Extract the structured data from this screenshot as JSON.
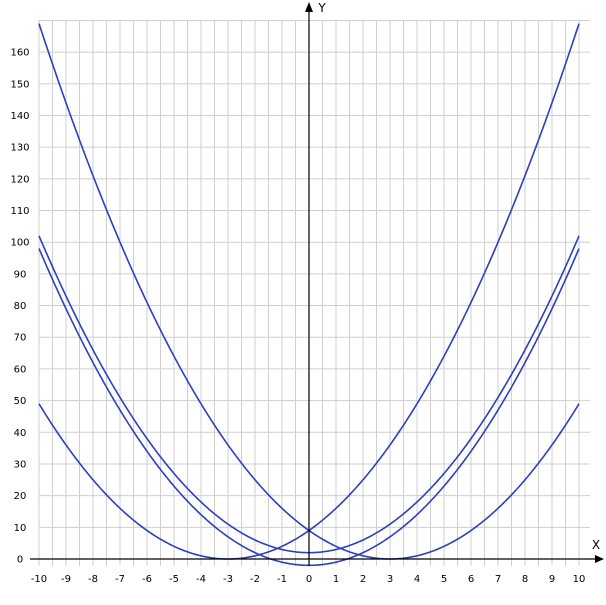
{
  "chart_data": {
    "type": "line",
    "title": "",
    "xlabel": "X",
    "ylabel": "Y",
    "xlim": [
      -10,
      10
    ],
    "ylim": [
      -2,
      170
    ],
    "grid": true,
    "x_ticks": [
      -10,
      -9,
      -8,
      -7,
      -6,
      -5,
      -4,
      -3,
      -2,
      -1,
      0,
      1,
      2,
      3,
      4,
      5,
      6,
      7,
      8,
      9,
      10
    ],
    "y_ticks": [
      0,
      10,
      20,
      30,
      40,
      50,
      60,
      70,
      80,
      90,
      100,
      110,
      120,
      130,
      140,
      150,
      160
    ],
    "line_color": "#2b3fc0",
    "x": [
      -10,
      -9,
      -8,
      -7,
      -6,
      -5,
      -4,
      -3,
      -2,
      -1,
      0,
      1,
      2,
      3,
      4,
      5,
      6,
      7,
      8,
      9,
      10
    ],
    "series": [
      {
        "values": [
          169,
          144,
          121,
          100,
          81,
          64,
          49,
          36,
          25,
          16,
          9,
          4,
          1,
          0,
          1,
          4,
          9,
          16,
          25,
          36,
          49
        ]
      },
      {
        "values": [
          49,
          36,
          25,
          16,
          9,
          4,
          1,
          0,
          1,
          4,
          9,
          16,
          25,
          36,
          49,
          64,
          81,
          100,
          121,
          144,
          169
        ]
      },
      {
        "values": [
          102,
          83,
          66,
          51,
          38,
          27,
          18,
          11,
          6,
          3,
          2,
          3,
          6,
          11,
          18,
          27,
          38,
          51,
          66,
          83,
          102
        ]
      },
      {
        "values": [
          98,
          79,
          62,
          47,
          34,
          23,
          14,
          7,
          2,
          -1,
          -2,
          -1,
          2,
          7,
          14,
          23,
          34,
          47,
          62,
          79,
          98
        ]
      }
    ]
  }
}
